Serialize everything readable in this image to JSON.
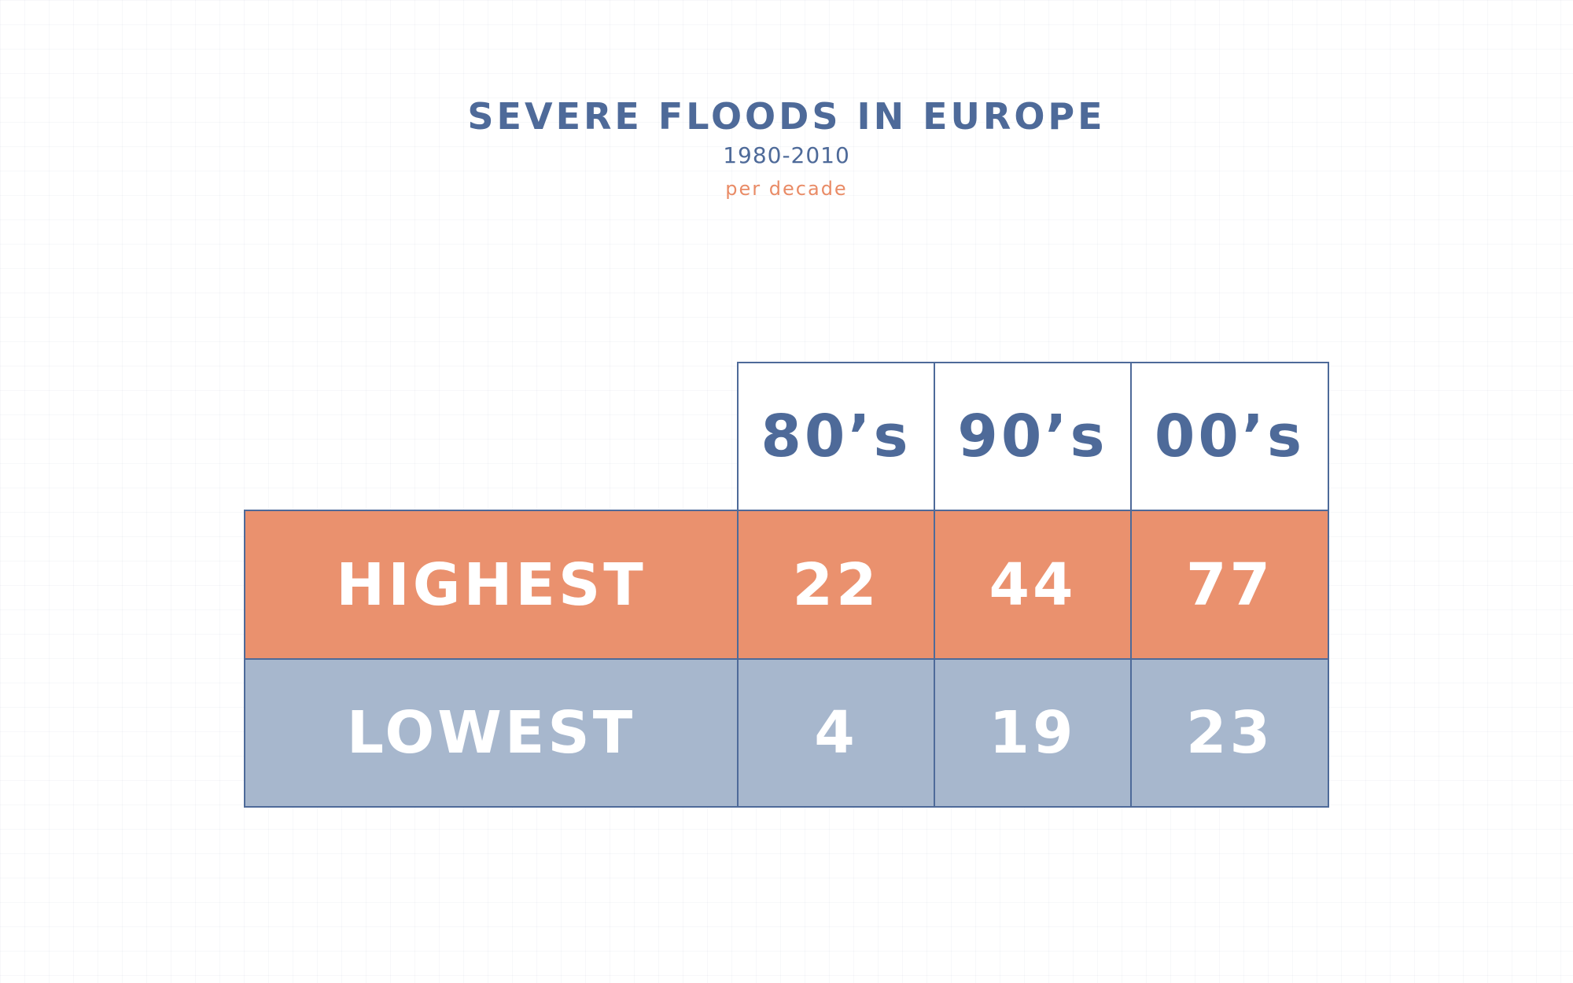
{
  "header": {
    "title": "SEVERE FLOODS IN EUROPE",
    "subtitle": "1980-2010",
    "note": "per decade"
  },
  "colors": {
    "title": "#4e6a99",
    "accent": "#e98b66",
    "high_row": "#ea916e",
    "low_row": "#a7b7cd",
    "border": "#4e6a99"
  },
  "chart_data": {
    "type": "table",
    "title": "SEVERE FLOODS IN EUROPE",
    "subtitle": "1980-2010",
    "note": "per decade",
    "columns": [
      "80’s",
      "90’s",
      "00’s"
    ],
    "rows": [
      {
        "label": "HIGHEST",
        "values": [
          22,
          44,
          77
        ]
      },
      {
        "label": "LOWEST",
        "values": [
          4,
          19,
          23
        ]
      }
    ]
  }
}
